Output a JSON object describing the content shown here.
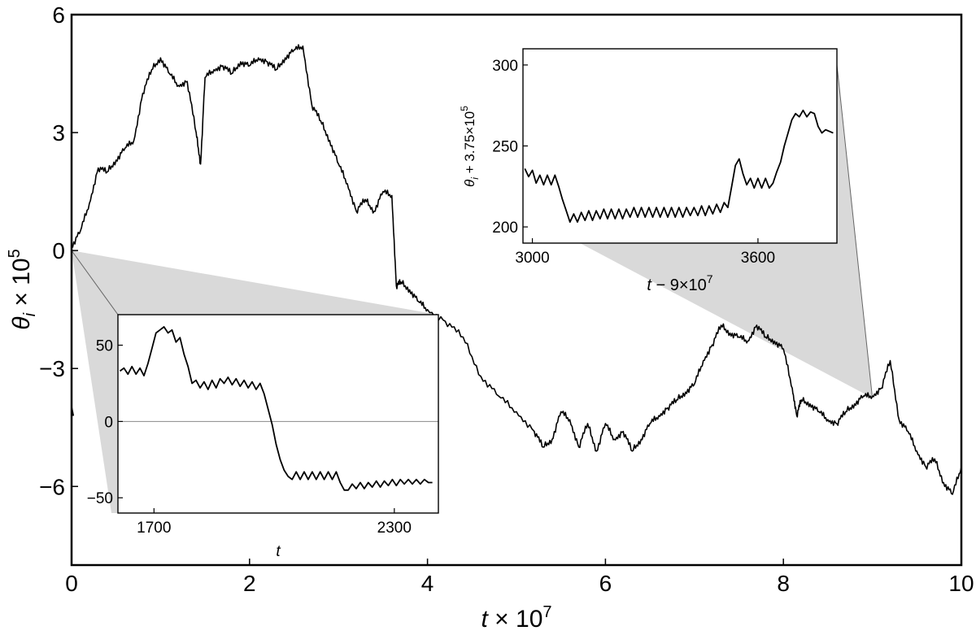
{
  "chart_data": {
    "type": "line",
    "main": {
      "xlabel_var": "t",
      "xlabel_rest": " × 10",
      "xlabel_exp": "7",
      "ylabel_var": "θ",
      "ylabel_sub": "i",
      "ylabel_rest": " × 10",
      "ylabel_exp": "5",
      "xlim": [
        0,
        10
      ],
      "ylim": [
        -8,
        6
      ],
      "xticks": [
        "0",
        "2",
        "4",
        "6",
        "8",
        "10"
      ],
      "yticks": [
        "6",
        "3",
        "0",
        "−3",
        "−6"
      ],
      "series": [
        {
          "x": [
            0,
            0.1,
            0.2,
            0.3,
            0.4,
            0.5,
            0.6,
            0.7,
            0.8,
            0.9,
            1.0,
            1.1,
            1.2,
            1.3,
            1.4,
            1.45,
            1.5,
            1.6,
            1.7,
            1.8,
            1.9,
            2.0,
            2.1,
            2.2,
            2.3,
            2.4,
            2.5,
            2.6,
            2.7,
            2.8,
            2.9,
            3.0,
            3.1,
            3.2,
            3.3,
            3.4,
            3.5,
            3.6,
            3.65,
            3.7,
            3.8,
            3.9,
            4.0,
            4.2,
            4.4,
            4.6,
            4.8,
            5.0,
            5.2,
            5.3,
            5.4,
            5.5,
            5.6,
            5.7,
            5.8,
            5.9,
            6.0,
            6.1,
            6.2,
            6.3,
            6.4,
            6.5,
            6.6,
            6.7,
            6.8,
            6.9,
            7.0,
            7.1,
            7.2,
            7.3,
            7.4,
            7.5,
            7.6,
            7.7,
            7.8,
            7.9,
            8.0,
            8.1,
            8.15,
            8.2,
            8.3,
            8.4,
            8.5,
            8.6,
            8.7,
            8.8,
            8.9,
            9.0,
            9.1,
            9.2,
            9.3,
            9.4,
            9.5,
            9.6,
            9.7,
            9.8,
            9.9,
            10.0
          ],
          "y": [
            0.1,
            0.5,
            1.2,
            2.1,
            2.0,
            2.3,
            2.6,
            2.8,
            4.0,
            4.6,
            4.9,
            4.5,
            4.2,
            4.3,
            3.0,
            2.2,
            4.4,
            4.6,
            4.7,
            4.5,
            4.8,
            4.7,
            4.9,
            4.8,
            4.6,
            4.9,
            5.1,
            5.2,
            3.7,
            3.3,
            2.8,
            2.2,
            1.7,
            1.0,
            1.3,
            1.0,
            1.5,
            1.4,
            -0.9,
            -0.8,
            -1.0,
            -1.3,
            -1.5,
            -1.8,
            -2.2,
            -3.2,
            -3.7,
            -4.1,
            -4.6,
            -5.0,
            -4.8,
            -4.1,
            -4.3,
            -5.0,
            -4.4,
            -5.1,
            -4.4,
            -4.8,
            -4.6,
            -5.1,
            -4.8,
            -4.4,
            -4.2,
            -4.0,
            -3.8,
            -3.6,
            -3.4,
            -2.8,
            -2.4,
            -1.9,
            -2.1,
            -2.2,
            -2.3,
            -1.9,
            -2.2,
            -2.3,
            -2.5,
            -3.5,
            -4.2,
            -3.8,
            -3.9,
            -4.1,
            -4.3,
            -4.4,
            -4.1,
            -3.9,
            -3.7,
            -3.7,
            -3.5,
            -2.8,
            -4.3,
            -4.6,
            -5.1,
            -5.5,
            -5.3,
            -5.9,
            -6.2,
            -5.5
          ],
          "stroke": "#000000"
        }
      ],
      "marker": {
        "x": 0.01,
        "y": -4.1
      },
      "shade_color": "#d9d9d9"
    },
    "inset_left": {
      "xlabel": "t",
      "xticks": [
        {
          "value": 1700,
          "label": "1700"
        },
        {
          "value": 2300,
          "label": "2300"
        }
      ],
      "yticks": [
        {
          "value": 50,
          "label": "50"
        },
        {
          "value": 0,
          "label": "0"
        },
        {
          "value": -50,
          "label": "−50"
        }
      ],
      "xlim": [
        1610,
        2410
      ],
      "ylim": [
        -60,
        70
      ],
      "zero_line": true,
      "series": [
        {
          "x": [
            1615,
            1625,
            1635,
            1645,
            1655,
            1665,
            1675,
            1685,
            1695,
            1705,
            1715,
            1725,
            1735,
            1745,
            1755,
            1765,
            1775,
            1785,
            1795,
            1805,
            1815,
            1825,
            1835,
            1845,
            1855,
            1865,
            1875,
            1885,
            1895,
            1905,
            1915,
            1925,
            1935,
            1945,
            1955,
            1965,
            1975,
            1985,
            1995,
            2005,
            2015,
            2025,
            2035,
            2045,
            2055,
            2065,
            2075,
            2085,
            2095,
            2105,
            2115,
            2125,
            2135,
            2145,
            2155,
            2165,
            2175,
            2185,
            2195,
            2205,
            2215,
            2225,
            2235,
            2245,
            2255,
            2265,
            2275,
            2285,
            2295,
            2305,
            2315,
            2325,
            2335,
            2345,
            2355,
            2365,
            2375,
            2385,
            2395
          ],
          "y": [
            33,
            35,
            31,
            36,
            31,
            35,
            30,
            38,
            48,
            58,
            60,
            62,
            58,
            60,
            52,
            55,
            44,
            36,
            25,
            27,
            22,
            26,
            21,
            27,
            22,
            28,
            25,
            29,
            24,
            28,
            23,
            27,
            22,
            26,
            21,
            25,
            18,
            8,
            -2,
            -15,
            -25,
            -32,
            -36,
            -38,
            -33,
            -38,
            -33,
            -38,
            -33,
            -38,
            -33,
            -38,
            -33,
            -38,
            -33,
            -40,
            -45,
            -45,
            -41,
            -44,
            -40,
            -44,
            -40,
            -43,
            -39,
            -43,
            -39,
            -42,
            -38,
            -42,
            -38,
            -41,
            -38,
            -41,
            -38,
            -41,
            -38,
            -40,
            -40
          ],
          "stroke": "#000000"
        }
      ]
    },
    "inset_right": {
      "xlabel_var": "t",
      "xlabel_rest": " − 9×10",
      "xlabel_exp": "7",
      "ylabel_var": "θ",
      "ylabel_sub": "i",
      "ylabel_rest": " + 3.75×10",
      "ylabel_exp": "5",
      "xticks": [
        {
          "value": 3000,
          "label": "3000"
        },
        {
          "value": 3600,
          "label": "3600"
        }
      ],
      "yticks": [
        {
          "value": 300,
          "label": "300"
        },
        {
          "value": 250,
          "label": "250"
        },
        {
          "value": 200,
          "label": "200"
        }
      ],
      "xlim": [
        2975,
        3810
      ],
      "ylim": [
        190,
        310
      ],
      "series": [
        {
          "x": [
            2980,
            2990,
            3000,
            3010,
            3020,
            3030,
            3040,
            3050,
            3060,
            3070,
            3080,
            3090,
            3100,
            3110,
            3120,
            3130,
            3140,
            3150,
            3160,
            3170,
            3180,
            3190,
            3200,
            3210,
            3220,
            3230,
            3240,
            3250,
            3260,
            3270,
            3280,
            3290,
            3300,
            3310,
            3320,
            3330,
            3340,
            3350,
            3360,
            3370,
            3380,
            3390,
            3400,
            3410,
            3420,
            3430,
            3440,
            3450,
            3460,
            3470,
            3480,
            3490,
            3500,
            3510,
            3520,
            3530,
            3540,
            3550,
            3560,
            3570,
            3580,
            3590,
            3600,
            3610,
            3620,
            3630,
            3640,
            3650,
            3660,
            3670,
            3680,
            3690,
            3700,
            3710,
            3720,
            3730,
            3740,
            3750,
            3760,
            3770,
            3780,
            3790,
            3800
          ],
          "y": [
            236,
            231,
            235,
            227,
            232,
            226,
            232,
            226,
            232,
            225,
            217,
            210,
            203,
            208,
            203,
            209,
            204,
            210,
            204,
            210,
            205,
            211,
            205,
            211,
            205,
            211,
            205,
            211,
            206,
            212,
            206,
            212,
            206,
            212,
            206,
            212,
            206,
            212,
            206,
            212,
            206,
            212,
            206,
            212,
            207,
            212,
            207,
            213,
            207,
            213,
            208,
            214,
            209,
            215,
            212,
            225,
            238,
            242,
            233,
            226,
            230,
            224,
            230,
            224,
            230,
            224,
            227,
            234,
            240,
            250,
            258,
            266,
            270,
            268,
            272,
            268,
            271,
            270,
            262,
            258,
            260,
            259,
            258
          ],
          "stroke": "#000000"
        }
      ]
    }
  }
}
